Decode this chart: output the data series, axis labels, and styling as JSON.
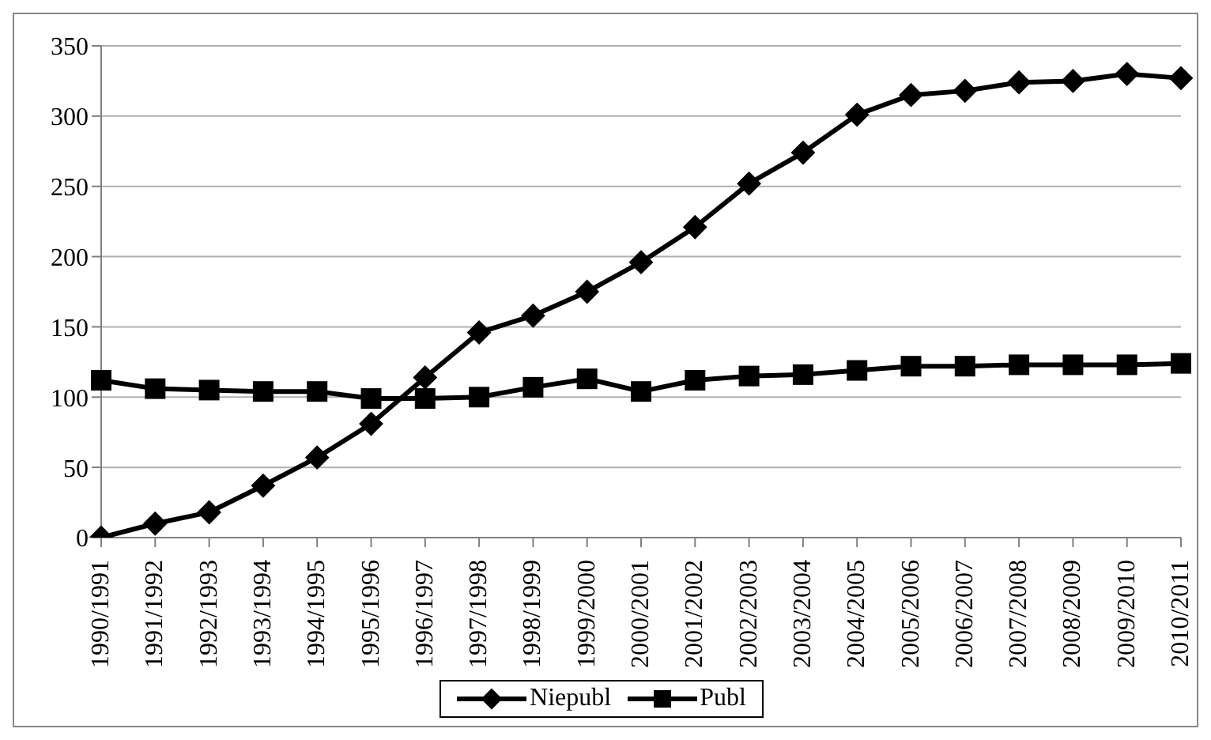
{
  "chart_data": {
    "type": "line",
    "categories": [
      "1990/1991",
      "1991/1992",
      "1992/1993",
      "1993/1994",
      "1994/1995",
      "1995/1996",
      "1996/1997",
      "1997/1998",
      "1998/1999",
      "1999/2000",
      "2000/2001",
      "2001/2002",
      "2002/2003",
      "2003/2004",
      "2004/2005",
      "2005/2006",
      "2006/2007",
      "2007/2008",
      "2008/2009",
      "2009/2010",
      "2010/2011"
    ],
    "series": [
      {
        "name": "Niepubl",
        "color": "#000000",
        "marker": "diamond",
        "values": [
          0,
          10,
          18,
          37,
          57,
          81,
          114,
          146,
          158,
          175,
          196,
          221,
          252,
          274,
          301,
          315,
          318,
          324,
          325,
          330,
          327
        ]
      },
      {
        "name": "Publ",
        "color": "#000000",
        "marker": "square",
        "values": [
          112,
          106,
          105,
          104,
          104,
          99,
          99,
          100,
          107,
          113,
          104,
          112,
          115,
          116,
          119,
          122,
          122,
          123,
          123,
          123,
          124
        ]
      }
    ],
    "ylim": [
      0,
      350
    ],
    "yticks": [
      0,
      50,
      100,
      150,
      200,
      250,
      300,
      350
    ],
    "grid": "y",
    "legend": "bottom"
  }
}
